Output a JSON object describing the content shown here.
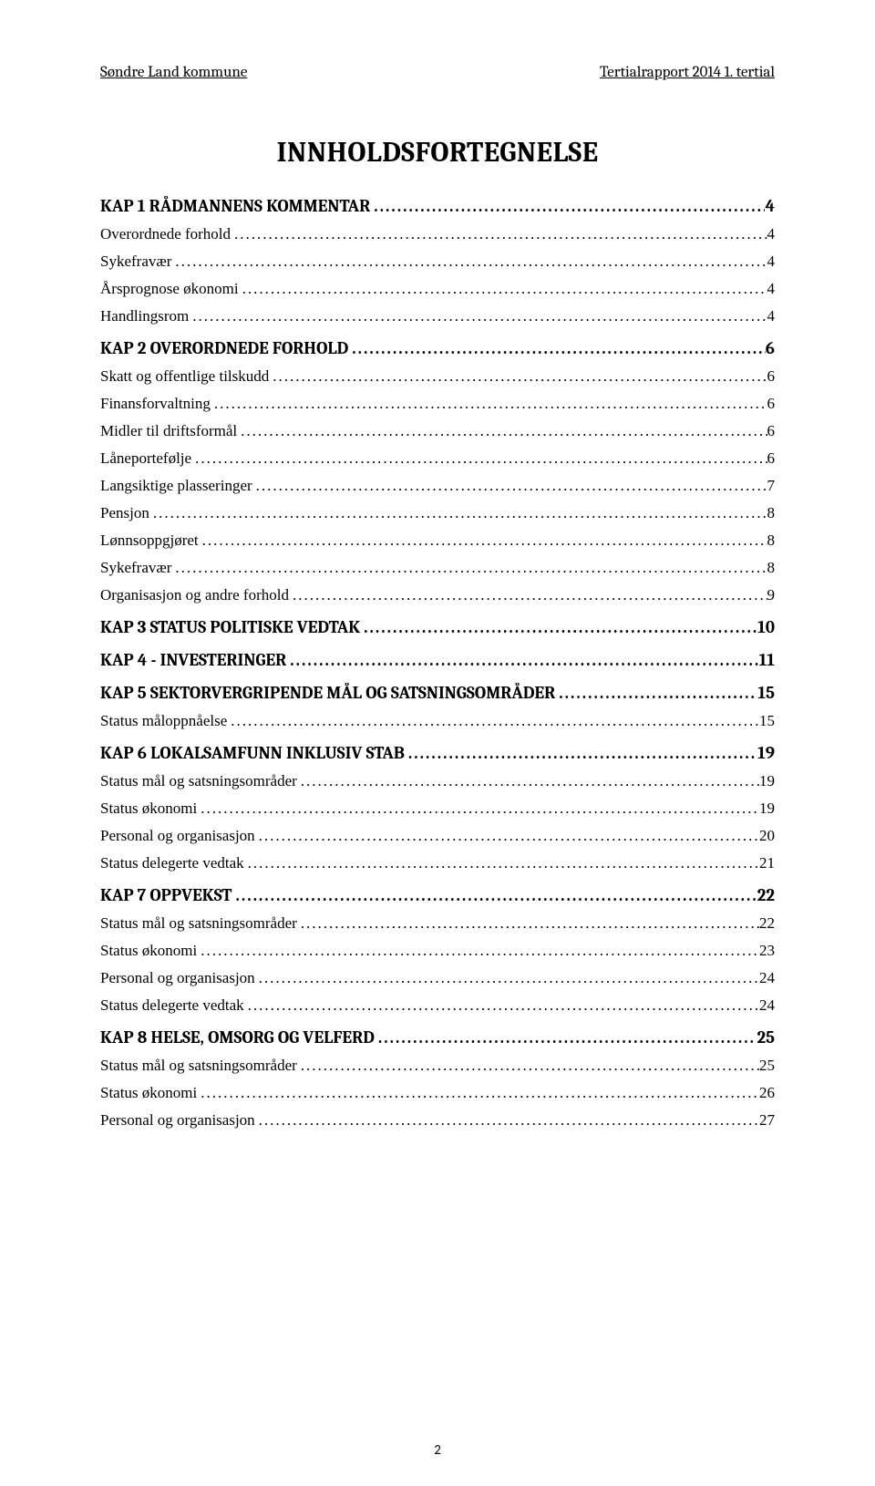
{
  "header": {
    "left": "Søndre Land kommune",
    "right": "Tertialrapport 2014 1. tertial"
  },
  "title": "INNHOLDSFORTEGNELSE",
  "toc": [
    {
      "label": "KAP 1 RÅDMANNENS KOMMENTAR",
      "page": "4",
      "style": "h1"
    },
    {
      "label": "Overordnede forhold",
      "page": "4",
      "style": "h2"
    },
    {
      "label": "Sykefravær",
      "page": "4",
      "style": "h2"
    },
    {
      "label": "Årsprognose økonomi",
      "page": "4",
      "style": "h2"
    },
    {
      "label": "Handlingsrom",
      "page": "4",
      "style": "h2"
    },
    {
      "label": "KAP 2 OVERORDNEDE FORHOLD",
      "page": "6",
      "style": "h1"
    },
    {
      "label": "Skatt og offentlige tilskudd",
      "page": "6",
      "style": "h2"
    },
    {
      "label": "Finansforvaltning",
      "page": "6",
      "style": "h2"
    },
    {
      "label": "Midler til driftsformål",
      "page": "6",
      "style": "h2"
    },
    {
      "label": "Låneportefølje",
      "page": "6",
      "style": "h2"
    },
    {
      "label": "Langsiktige plasseringer",
      "page": "7",
      "style": "h2"
    },
    {
      "label": "Pensjon",
      "page": "8",
      "style": "h2"
    },
    {
      "label": "Lønnsoppgjøret",
      "page": "8",
      "style": "h2"
    },
    {
      "label": "Sykefravær",
      "page": "8",
      "style": "h2"
    },
    {
      "label": "Organisasjon og andre forhold",
      "page": "9",
      "style": "h2"
    },
    {
      "label": "KAP 3 STATUS POLITISKE VEDTAK",
      "page": "10",
      "style": "h1"
    },
    {
      "label": "KAP 4 - INVESTERINGER",
      "page": "11",
      "style": "h1"
    },
    {
      "label": "KAP 5 SEKTORVERGRIPENDE MÅL OG SATSNINGSOMRÅDER",
      "page": "15",
      "style": "h1"
    },
    {
      "label": "Status måloppnåelse",
      "page": "15",
      "style": "h2"
    },
    {
      "label": "KAP 6 LOKALSAMFUNN INKLUSIV STAB",
      "page": "19",
      "style": "h1"
    },
    {
      "label": "Status mål og satsningsområder",
      "page": "19",
      "style": "h2"
    },
    {
      "label": "Status økonomi",
      "page": "19",
      "style": "h2"
    },
    {
      "label": "Personal og organisasjon",
      "page": "20",
      "style": "h2"
    },
    {
      "label": "Status delegerte vedtak",
      "page": "21",
      "style": "h2"
    },
    {
      "label": "KAP 7 OPPVEKST",
      "page": "22",
      "style": "h1"
    },
    {
      "label": "Status mål og satsningsområder",
      "page": "22",
      "style": "h2"
    },
    {
      "label": "Status økonomi",
      "page": "23",
      "style": "h2"
    },
    {
      "label": "Personal og organisasjon",
      "page": "24",
      "style": "h2"
    },
    {
      "label": "Status delegerte vedtak",
      "page": "24",
      "style": "h2"
    },
    {
      "label": "KAP 8 HELSE, OMSORG OG VELFERD",
      "page": "25",
      "style": "h1"
    },
    {
      "label": "Status mål og satsningsområder",
      "page": "25",
      "style": "h2"
    },
    {
      "label": "Status økonomi",
      "page": "26",
      "style": "h2"
    },
    {
      "label": "Personal og organisasjon",
      "page": "27",
      "style": "h2"
    }
  ],
  "pageNumber": "2"
}
